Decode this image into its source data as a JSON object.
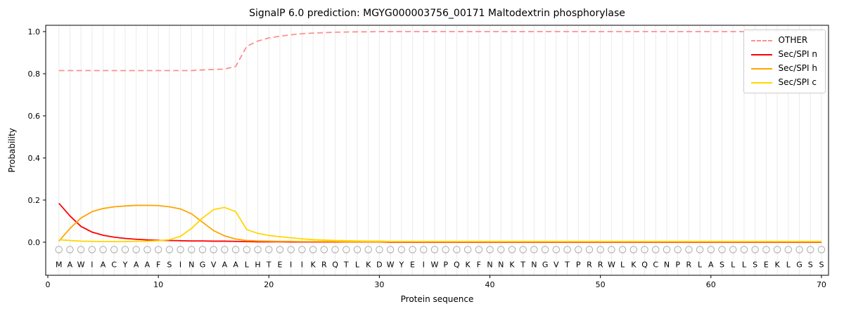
{
  "chart_data": {
    "type": "line",
    "title": "SignalP 6.0 prediction: MGYG000003756_00171 Maltodextrin phosphorylase",
    "xlabel": "Protein sequence",
    "ylabel": "Probability",
    "xlim": [
      -0.19,
      70.64
    ],
    "ylim": [
      -0.157,
      1.03
    ],
    "x_ticks": [
      0,
      10,
      20,
      30,
      40,
      50,
      60,
      70
    ],
    "x_tick_labels": [
      "0",
      "10",
      "20",
      "30",
      "40",
      "50",
      "60",
      "70"
    ],
    "y_ticks": [
      0.0,
      0.2,
      0.4,
      0.6,
      0.8,
      1.0
    ],
    "y_tick_labels": [
      "0.0",
      "0.2",
      "0.4",
      "0.6",
      "0.8",
      "1.0"
    ],
    "grid": "vertical line at every residue position",
    "legend_position": "upper right",
    "residues": "MAWIACYAAFSINGVAALHTEIIKRQTLKDWYEIWPQKFNNKTNGVTPRRWLKQCNPRLASLLSEKLGSS",
    "marker": {
      "shape": "open-circle",
      "color": "#aaaaaa",
      "y": -0.035
    },
    "residue_label_y": -0.105,
    "colors": {
      "axis": "#000000",
      "grid": "#ebebeb",
      "text": "#000000"
    },
    "series": [
      {
        "name": "OTHER",
        "color": "#ff8f8f",
        "dash": true,
        "values": [
          0.815,
          0.815,
          0.815,
          0.815,
          0.815,
          0.815,
          0.815,
          0.815,
          0.815,
          0.815,
          0.815,
          0.815,
          0.815,
          0.818,
          0.82,
          0.822,
          0.835,
          0.93,
          0.955,
          0.97,
          0.978,
          0.985,
          0.99,
          0.993,
          0.995,
          0.997,
          0.998,
          0.999,
          0.999,
          1.0,
          1.0,
          1.0,
          1.0,
          1.0,
          1.0,
          1.0,
          1.0,
          1.0,
          1.0,
          1.0,
          1.0,
          1.0,
          1.0,
          1.0,
          1.0,
          1.0,
          1.0,
          1.0,
          1.0,
          1.0,
          1.0,
          1.0,
          1.0,
          1.0,
          1.0,
          1.0,
          1.0,
          1.0,
          1.0,
          1.0,
          1.0,
          1.0,
          1.0,
          1.0,
          1.0,
          1.0,
          1.0,
          1.0,
          1.0,
          1.0
        ]
      },
      {
        "name": "Sec/SPI n",
        "color": "#ff0000",
        "dash": false,
        "values": [
          0.185,
          0.125,
          0.075,
          0.048,
          0.033,
          0.024,
          0.018,
          0.014,
          0.011,
          0.009,
          0.008,
          0.007,
          0.006,
          0.006,
          0.005,
          0.005,
          0.004,
          0.003,
          0.002,
          0.002,
          0.002,
          0.001,
          0.001,
          0.001,
          0.001,
          0.001,
          0.001,
          0.001,
          0.001,
          0.001,
          0.0,
          0.0,
          0.0,
          0.0,
          0.0,
          0.0,
          0.0,
          0.0,
          0.0,
          0.0,
          0.0,
          0.0,
          0.0,
          0.0,
          0.0,
          0.0,
          0.0,
          0.0,
          0.0,
          0.0,
          0.0,
          0.0,
          0.0,
          0.0,
          0.0,
          0.0,
          0.0,
          0.0,
          0.0,
          0.0,
          0.0,
          0.0,
          0.0,
          0.0,
          0.0,
          0.0,
          0.0,
          0.0,
          0.0,
          0.0
        ]
      },
      {
        "name": "Sec/SPI h",
        "color": "#ffa500",
        "dash": false,
        "values": [
          0.005,
          0.065,
          0.115,
          0.145,
          0.16,
          0.168,
          0.172,
          0.175,
          0.175,
          0.174,
          0.168,
          0.158,
          0.135,
          0.095,
          0.055,
          0.03,
          0.015,
          0.008,
          0.006,
          0.005,
          0.004,
          0.004,
          0.003,
          0.003,
          0.003,
          0.003,
          0.002,
          0.002,
          0.002,
          0.002,
          0.002,
          0.002,
          0.002,
          0.002,
          0.002,
          0.002,
          0.002,
          0.002,
          0.002,
          0.002,
          0.002,
          0.002,
          0.002,
          0.002,
          0.002,
          0.002,
          0.002,
          0.002,
          0.002,
          0.002,
          0.002,
          0.002,
          0.002,
          0.002,
          0.002,
          0.002,
          0.002,
          0.002,
          0.002,
          0.002,
          0.002,
          0.002,
          0.002,
          0.002,
          0.002,
          0.002,
          0.002,
          0.002,
          0.002,
          0.002
        ]
      },
      {
        "name": "Sec/SPI c",
        "color": "#ffd700",
        "dash": false,
        "values": [
          0.012,
          0.008,
          0.005,
          0.004,
          0.003,
          0.003,
          0.003,
          0.004,
          0.005,
          0.007,
          0.012,
          0.028,
          0.065,
          0.115,
          0.155,
          0.165,
          0.145,
          0.06,
          0.042,
          0.032,
          0.026,
          0.021,
          0.016,
          0.012,
          0.01,
          0.008,
          0.007,
          0.006,
          0.005,
          0.005,
          0.004,
          0.004,
          0.004,
          0.004,
          0.004,
          0.004,
          0.004,
          0.004,
          0.004,
          0.004,
          0.004,
          0.004,
          0.004,
          0.004,
          0.004,
          0.004,
          0.004,
          0.004,
          0.004,
          0.004,
          0.004,
          0.004,
          0.004,
          0.004,
          0.004,
          0.004,
          0.004,
          0.004,
          0.004,
          0.004,
          0.004,
          0.004,
          0.004,
          0.004,
          0.004,
          0.004,
          0.004,
          0.004,
          0.004,
          0.004
        ]
      }
    ]
  }
}
